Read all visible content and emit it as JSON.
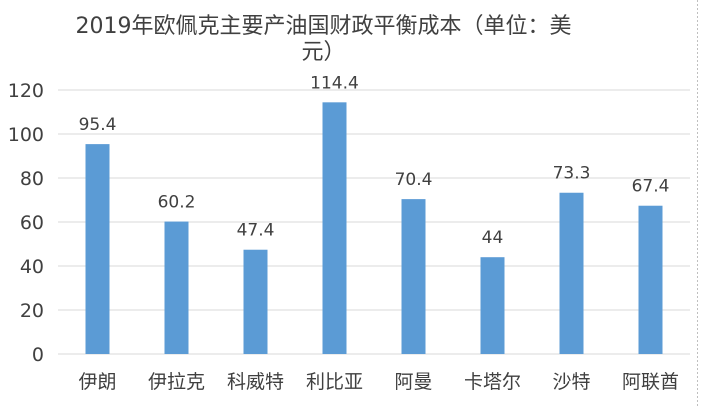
{
  "chart_data": {
    "type": "bar",
    "title_lines": [
      "2019年欧佩克主要产油国财政平衡成本（单位：美",
      "元）"
    ],
    "categories": [
      "伊朗",
      "伊拉克",
      "科威特",
      "利比亚",
      "阿曼",
      "卡塔尔",
      "沙特",
      "阿联酋"
    ],
    "values": [
      95.4,
      60.2,
      47.4,
      114.4,
      70.4,
      44,
      73.3,
      67.4
    ],
    "value_labels": [
      "95.4",
      "60.2",
      "47.4",
      "114.4",
      "70.4",
      "44",
      "73.3",
      "67.4"
    ],
    "y_ticks": [
      "0",
      "20",
      "40",
      "60",
      "80",
      "100",
      "120"
    ],
    "ylim": [
      0,
      120
    ],
    "grid": true,
    "legend": "none",
    "bar_color": "#5b9bd5",
    "grid_color": "#d9d9d9"
  }
}
